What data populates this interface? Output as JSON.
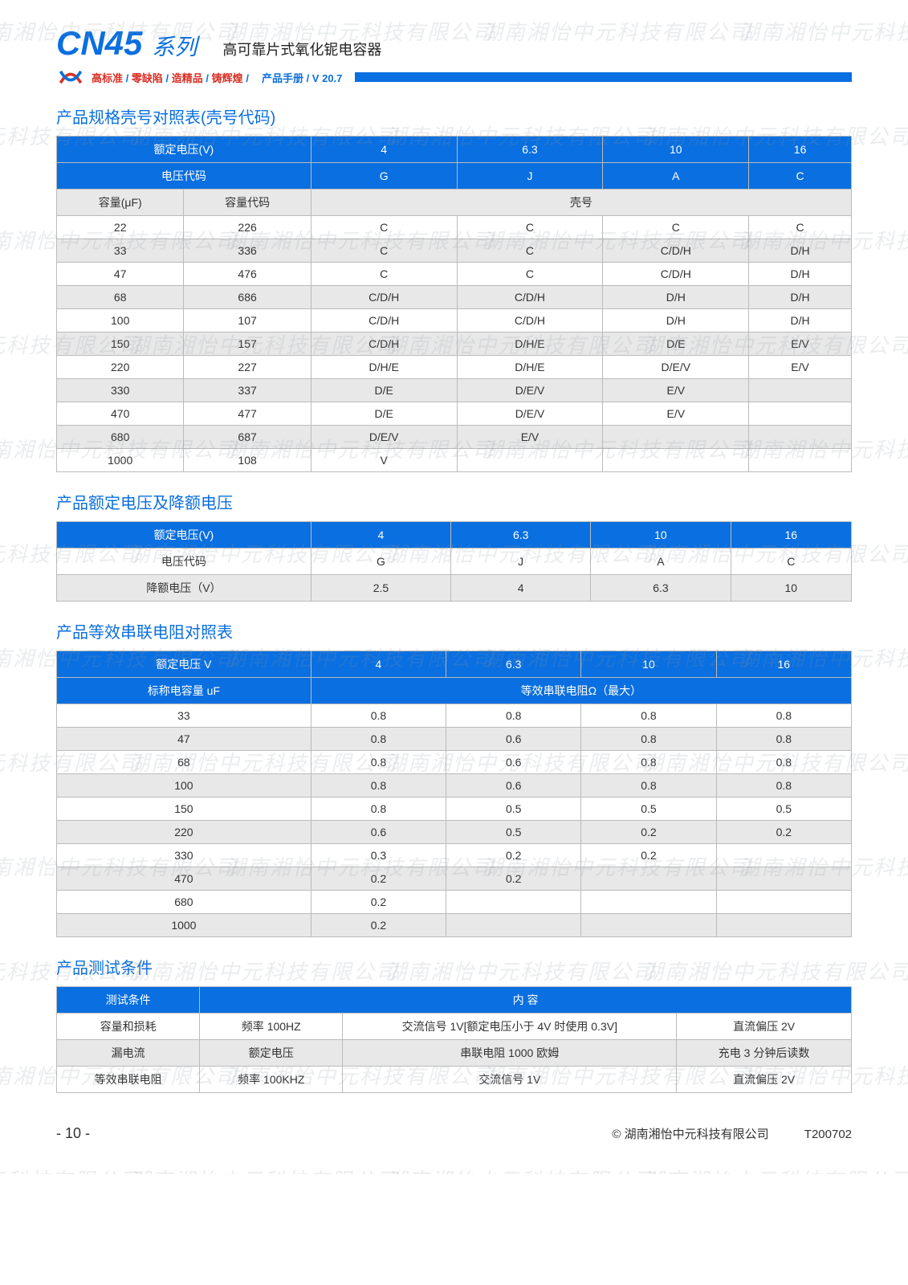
{
  "header": {
    "model": "CN45",
    "series": "系列",
    "subtitle": "高可靠片式氧化铌电容器",
    "slogan1": "高标准",
    "slogan2": "零缺陷",
    "slogan3": "造精品",
    "slogan4": "铸辉煌",
    "manual": "产品手册",
    "version": "/ V 20.7"
  },
  "watermark_text": "湖南湘怡中元科技有限公司",
  "colors": {
    "brand_blue": "#0a6fe0",
    "slogan_red": "#d93025",
    "header_bg": "#0a6fe0",
    "alt_row": "#e8e8e8",
    "border": "#bbbbbb",
    "watermark": "rgba(140,150,160,0.18)"
  },
  "section1": {
    "title": "产品规格壳号对照表(壳号代码)",
    "voltage_label": "额定电压(V)",
    "voltages": [
      "4",
      "6.3",
      "10",
      "16"
    ],
    "code_label": "电压代码",
    "codes": [
      "G",
      "J",
      "A",
      "C"
    ],
    "cap_label": "容量(μF)",
    "capcode_label": "容量代码",
    "case_label": "壳号",
    "rows": [
      [
        "22",
        "226",
        "C",
        "C",
        "C",
        "C"
      ],
      [
        "33",
        "336",
        "C",
        "C",
        "C/D/H",
        "D/H"
      ],
      [
        "47",
        "476",
        "C",
        "C",
        "C/D/H",
        "D/H"
      ],
      [
        "68",
        "686",
        "C/D/H",
        "C/D/H",
        "D/H",
        "D/H"
      ],
      [
        "100",
        "107",
        "C/D/H",
        "C/D/H",
        "D/H",
        "D/H"
      ],
      [
        "150",
        "157",
        "C/D/H",
        "D/H/E",
        "D/E",
        "E/V"
      ],
      [
        "220",
        "227",
        "D/H/E",
        "D/H/E",
        "D/E/V",
        "E/V"
      ],
      [
        "330",
        "337",
        "D/E",
        "D/E/V",
        "E/V",
        ""
      ],
      [
        "470",
        "477",
        "D/E",
        "D/E/V",
        "E/V",
        ""
      ],
      [
        "680",
        "687",
        "D/E/V",
        "E/V",
        "",
        ""
      ],
      [
        "1000",
        "108",
        "V",
        "",
        "",
        ""
      ]
    ]
  },
  "section2": {
    "title": "产品额定电压及降额电压",
    "voltage_label": "额定电压(V)",
    "voltages": [
      "4",
      "6.3",
      "10",
      "16"
    ],
    "code_label": "电压代码",
    "codes": [
      "G",
      "J",
      "A",
      "C"
    ],
    "derate_label": "降额电压（V）",
    "derates": [
      "2.5",
      "4",
      "6.3",
      "10"
    ]
  },
  "section3": {
    "title": "产品等效串联电阻对照表",
    "voltage_label": "额定电压 V",
    "voltages": [
      "4",
      "6.3",
      "10",
      "16"
    ],
    "cap_label": "标称电容量 uF",
    "esr_label": "等效串联电阻Ω（最大）",
    "rows": [
      [
        "33",
        "0.8",
        "0.8",
        "0.8",
        "0.8"
      ],
      [
        "47",
        "0.8",
        "0.6",
        "0.8",
        "0.8"
      ],
      [
        "68",
        "0.8",
        "0.6",
        "0.8",
        "0.8"
      ],
      [
        "100",
        "0.8",
        "0.6",
        "0.8",
        "0.8"
      ],
      [
        "150",
        "0.8",
        "0.5",
        "0.5",
        "0.5"
      ],
      [
        "220",
        "0.6",
        "0.5",
        "0.2",
        "0.2"
      ],
      [
        "330",
        "0.3",
        "0.2",
        "0.2",
        ""
      ],
      [
        "470",
        "0.2",
        "0.2",
        "",
        ""
      ],
      [
        "680",
        "0.2",
        "",
        "",
        ""
      ],
      [
        "1000",
        "0.2",
        "",
        "",
        ""
      ]
    ]
  },
  "section4": {
    "title": "产品测试条件",
    "h1": "测试条件",
    "h2": "内 容",
    "rows": [
      [
        "容量和损耗",
        "频率 100HZ",
        "交流信号 1V[额定电压小于 4V 时使用 0.3V]",
        "直流偏压 2V"
      ],
      [
        "漏电流",
        "额定电压",
        "串联电阻 1000 欧姆",
        "充电 3 分钟后读数"
      ],
      [
        "等效串联电阻",
        "频率 100KHZ",
        "交流信号 1V",
        "直流偏压 2V"
      ]
    ]
  },
  "footer": {
    "page": "- 10 -",
    "copyright": "© 湖南湘怡中元科技有限公司",
    "docnum": "T200702"
  }
}
